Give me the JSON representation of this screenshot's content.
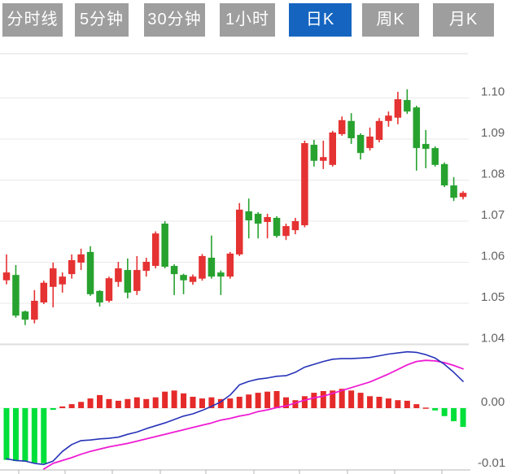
{
  "tab_bar": {
    "tabs": [
      {
        "label": "分时线",
        "active": false
      },
      {
        "label": "5分钟",
        "active": false
      },
      {
        "label": "30分钟",
        "active": false
      },
      {
        "label": "1小时",
        "active": false
      },
      {
        "label": "日K",
        "active": true
      },
      {
        "label": "周K",
        "active": false
      },
      {
        "label": "月K",
        "active": false
      }
    ],
    "active_bg": "#1565c0",
    "inactive_bg": "#9e9e9e",
    "label_color": "#ffffff"
  },
  "colors": {
    "background": "#ffffff",
    "up": "#e53232",
    "down": "#27a22f",
    "hist_up": "#e52a2a",
    "hist_down": "#00df3a",
    "dif_line": "#2733b8",
    "dea_line": "#ee1bd3",
    "grid": "#e8e8e8",
    "grid_strong": "#dedede",
    "axis": "#b5b5b5",
    "tick_label": "#636363"
  },
  "chart_data": {
    "type": "candlestick",
    "title": "",
    "legend_position": "none",
    "grid": true,
    "panels": [
      {
        "name": "price",
        "yticks": [
          "1.10",
          "1.09",
          "1.08",
          "1.07",
          "1.06",
          "1.05",
          "1.04"
        ],
        "ylim": [
          1.0365,
          1.111
        ],
        "candles_format": [
          "open",
          "high",
          "low",
          "close"
        ],
        "candles": [
          [
            1.0556,
            1.0619,
            1.0546,
            1.0575
          ],
          [
            1.0569,
            1.0593,
            1.0465,
            1.047
          ],
          [
            1.048,
            1.0482,
            1.0447,
            1.046
          ],
          [
            1.046,
            1.0532,
            1.0451,
            1.0506
          ],
          [
            1.0502,
            1.0555,
            1.0498,
            1.055
          ],
          [
            1.054,
            1.0599,
            1.049,
            1.0585
          ],
          [
            1.0546,
            1.0575,
            1.0526,
            1.0565
          ],
          [
            1.0571,
            1.0619,
            1.056,
            1.0605
          ],
          [
            1.0599,
            1.0633,
            1.0581,
            1.0619
          ],
          [
            1.0625,
            1.0639,
            1.0518,
            1.0522
          ],
          [
            1.053,
            1.0532,
            1.0492,
            1.0502
          ],
          [
            1.0506,
            1.0565,
            1.0502,
            1.0561
          ],
          [
            1.0552,
            1.0601,
            1.054,
            1.0585
          ],
          [
            1.0581,
            1.0609,
            1.0512,
            1.0526
          ],
          [
            1.053,
            1.0615,
            1.052,
            1.0581
          ],
          [
            1.0579,
            1.0611,
            1.0565,
            1.0601
          ],
          [
            1.0591,
            1.0675,
            1.0585,
            1.067
          ],
          [
            1.0694,
            1.07,
            1.0585,
            1.0589
          ],
          [
            1.0591,
            1.0595,
            1.052,
            1.0571
          ],
          [
            1.0569,
            1.0572,
            1.0522,
            1.0556
          ],
          [
            1.0552,
            1.057,
            1.0545,
            1.0565
          ],
          [
            1.056,
            1.062,
            1.0555,
            1.0615
          ],
          [
            1.0611,
            1.0665,
            1.056,
            1.0565
          ],
          [
            1.0575,
            1.058,
            1.052,
            1.0565
          ],
          [
            1.0565,
            1.0625,
            1.056,
            1.0621
          ],
          [
            1.0619,
            1.0744,
            1.0615,
            1.0728
          ],
          [
            1.0724,
            1.0755,
            1.0658,
            1.0702
          ],
          [
            1.0718,
            1.0722,
            1.0658,
            1.0694
          ],
          [
            1.0698,
            1.0718,
            1.0658,
            1.071
          ],
          [
            1.0708,
            1.0712,
            1.066,
            1.0664
          ],
          [
            1.0664,
            1.0694,
            1.0654,
            1.0688
          ],
          [
            1.0678,
            1.0708,
            1.0668,
            1.07
          ],
          [
            1.069,
            1.0896,
            1.0685,
            1.089
          ],
          [
            1.0886,
            1.0898,
            1.0833,
            1.0847
          ],
          [
            1.0847,
            1.0896,
            1.0827,
            1.0856
          ],
          [
            1.0837,
            1.092,
            1.0833,
            1.0916
          ],
          [
            1.0912,
            1.0955,
            1.0908,
            1.0946
          ],
          [
            1.0944,
            1.0963,
            1.0888,
            1.0902
          ],
          [
            1.091,
            1.0914,
            1.085,
            1.0866
          ],
          [
            1.0878,
            1.0928,
            1.0872,
            1.0906
          ],
          [
            1.0898,
            1.0951,
            1.0892,
            1.0944
          ],
          [
            1.0944,
            1.0967,
            1.093,
            1.0957
          ],
          [
            1.0952,
            1.1015,
            1.0936,
            1.0997
          ],
          [
            1.0995,
            1.1021,
            1.0961,
            1.0967
          ],
          [
            1.0977,
            1.0981,
            1.0823,
            1.0878
          ],
          [
            1.0888,
            1.0922,
            1.0829,
            1.0876
          ],
          [
            1.0878,
            1.0882,
            1.0833,
            1.0837
          ],
          [
            1.0839,
            1.0843,
            1.0783,
            1.0787
          ],
          [
            1.0787,
            1.0807,
            1.0749,
            1.0757
          ],
          [
            1.0759,
            1.0773,
            1.0753,
            1.0769
          ]
        ]
      },
      {
        "name": "macd",
        "yticks": [
          "0.00",
          "-0.01"
        ],
        "ylim": [
          -0.0112,
          0.0104
        ],
        "histogram": [
          -0.0091,
          -0.0093,
          -0.0094,
          -0.0096,
          -0.0097,
          -0.0003,
          0.0003,
          0.0007,
          0.0011,
          0.0017,
          0.0023,
          0.0016,
          0.0013,
          0.0016,
          0.0019,
          0.0016,
          0.0019,
          0.0029,
          0.0031,
          0.0026,
          0.002,
          0.0017,
          0.0019,
          0.0016,
          0.0017,
          0.002,
          0.0024,
          0.0027,
          0.0029,
          0.003,
          0.0019,
          0.0014,
          0.0021,
          0.0027,
          0.003,
          0.0031,
          0.0034,
          0.0031,
          0.0027,
          0.0021,
          0.002,
          0.0017,
          0.0014,
          0.0013,
          0.0007,
          0.0001,
          -0.0004,
          -0.0014,
          -0.0023,
          -0.0033
        ],
        "dif": [
          -0.0089,
          -0.0092,
          -0.0093,
          -0.0097,
          -0.0099,
          -0.0093,
          -0.0076,
          -0.0064,
          -0.0057,
          -0.0056,
          -0.0054,
          -0.0053,
          -0.0051,
          -0.0046,
          -0.0042,
          -0.0036,
          -0.0031,
          -0.0026,
          -0.002,
          -0.0014,
          -0.001,
          -0.0004,
          0.0003,
          0.0011,
          0.0023,
          0.0041,
          0.0047,
          0.0051,
          0.0053,
          0.0056,
          0.0057,
          0.0063,
          0.0072,
          0.0077,
          0.0082,
          0.0086,
          0.0087,
          0.0087,
          0.0088,
          0.0089,
          0.0092,
          0.0095,
          0.0097,
          0.0099,
          0.0098,
          0.0094,
          0.0088,
          0.0077,
          0.0063,
          0.0047
        ],
        "dea": [
          null,
          null,
          null,
          null,
          -0.0107,
          -0.0097,
          -0.0092,
          -0.0087,
          -0.0081,
          -0.0076,
          -0.0072,
          -0.0068,
          -0.0065,
          -0.0062,
          -0.0058,
          -0.0054,
          -0.005,
          -0.0046,
          -0.0042,
          -0.0038,
          -0.0034,
          -0.003,
          -0.0026,
          -0.0021,
          -0.0018,
          -0.0014,
          -0.0011,
          -0.0006,
          -0.0003,
          0.0001,
          0.0004,
          0.0009,
          0.0014,
          0.0018,
          0.0021,
          0.0026,
          0.0031,
          0.0036,
          0.0041,
          0.0046,
          0.0053,
          0.006,
          0.0068,
          0.0076,
          0.0082,
          0.0084,
          0.0083,
          0.008,
          0.0075,
          0.0069
        ]
      }
    ]
  }
}
